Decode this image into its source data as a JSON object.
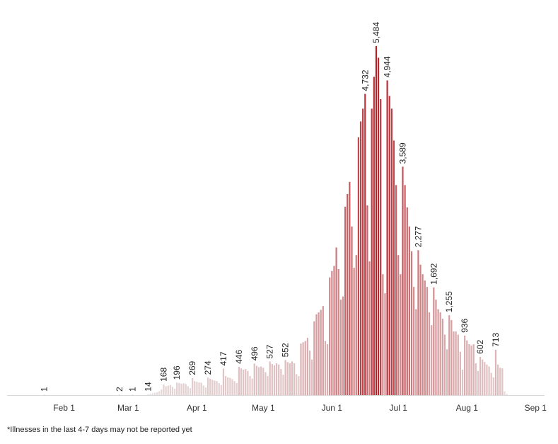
{
  "chart_data": {
    "type": "bar",
    "title": "",
    "xlabel": "",
    "ylabel": "",
    "x_range": [
      "Jan 23",
      "Aug 31"
    ],
    "ylim": [
      0,
      5700
    ],
    "x_ticks": [
      "Feb 1",
      "Mar 1",
      "Apr 1",
      "May 1",
      "Jun 1",
      "Jul 1",
      "Aug 1",
      "Sep 1"
    ],
    "bars": [
      {
        "x": "Jan 23",
        "y": 1
      },
      {
        "x": "Feb 26",
        "y": 2
      },
      {
        "x": "Mar 3",
        "y": 1
      },
      {
        "x": "Mar 10",
        "y": 14
      },
      {
        "x": "Mar 11",
        "y": 20
      },
      {
        "x": "Mar 12",
        "y": 30
      },
      {
        "x": "Mar 13",
        "y": 35
      },
      {
        "x": "Mar 14",
        "y": 45
      },
      {
        "x": "Mar 15",
        "y": 60
      },
      {
        "x": "Mar 16",
        "y": 90
      },
      {
        "x": "Mar 17",
        "y": 168
      },
      {
        "x": "Mar 18",
        "y": 140
      },
      {
        "x": "Mar 19",
        "y": 150
      },
      {
        "x": "Mar 20",
        "y": 160
      },
      {
        "x": "Mar 21",
        "y": 130
      },
      {
        "x": "Mar 22",
        "y": 100
      },
      {
        "x": "Mar 23",
        "y": 196
      },
      {
        "x": "Mar 24",
        "y": 190
      },
      {
        "x": "Mar 25",
        "y": 180
      },
      {
        "x": "Mar 26",
        "y": 185
      },
      {
        "x": "Mar 27",
        "y": 175
      },
      {
        "x": "Mar 28",
        "y": 140
      },
      {
        "x": "Mar 29",
        "y": 110
      },
      {
        "x": "Mar 30",
        "y": 269
      },
      {
        "x": "Mar 31",
        "y": 220
      },
      {
        "x": "Apr 1",
        "y": 210
      },
      {
        "x": "Apr 2",
        "y": 200
      },
      {
        "x": "Apr 3",
        "y": 195
      },
      {
        "x": "Apr 4",
        "y": 150
      },
      {
        "x": "Apr 5",
        "y": 120
      },
      {
        "x": "Apr 6",
        "y": 274
      },
      {
        "x": "Apr 7",
        "y": 260
      },
      {
        "x": "Apr 8",
        "y": 240
      },
      {
        "x": "Apr 9",
        "y": 230
      },
      {
        "x": "Apr 10",
        "y": 220
      },
      {
        "x": "Apr 11",
        "y": 190
      },
      {
        "x": "Apr 12",
        "y": 160
      },
      {
        "x": "Apr 13",
        "y": 417
      },
      {
        "x": "Apr 14",
        "y": 300
      },
      {
        "x": "Apr 15",
        "y": 280
      },
      {
        "x": "Apr 16",
        "y": 270
      },
      {
        "x": "Apr 17",
        "y": 250
      },
      {
        "x": "Apr 18",
        "y": 220
      },
      {
        "x": "Apr 19",
        "y": 190
      },
      {
        "x": "Apr 20",
        "y": 446
      },
      {
        "x": "Apr 21",
        "y": 420
      },
      {
        "x": "Apr 22",
        "y": 400
      },
      {
        "x": "Apr 23",
        "y": 410
      },
      {
        "x": "Apr 24",
        "y": 380
      },
      {
        "x": "Apr 25",
        "y": 300
      },
      {
        "x": "Apr 26",
        "y": 260
      },
      {
        "x": "Apr 27",
        "y": 496
      },
      {
        "x": "Apr 28",
        "y": 460
      },
      {
        "x": "Apr 29",
        "y": 440
      },
      {
        "x": "Apr 30",
        "y": 450
      },
      {
        "x": "May 1",
        "y": 430
      },
      {
        "x": "May 2",
        "y": 360
      },
      {
        "x": "May 3",
        "y": 300
      },
      {
        "x": "May 4",
        "y": 527
      },
      {
        "x": "May 5",
        "y": 490
      },
      {
        "x": "May 6",
        "y": 470
      },
      {
        "x": "May 7",
        "y": 500
      },
      {
        "x": "May 8",
        "y": 480
      },
      {
        "x": "May 9",
        "y": 410
      },
      {
        "x": "May 10",
        "y": 320
      },
      {
        "x": "May 11",
        "y": 552
      },
      {
        "x": "May 12",
        "y": 520
      },
      {
        "x": "May 13",
        "y": 500
      },
      {
        "x": "May 14",
        "y": 530
      },
      {
        "x": "May 15",
        "y": 500
      },
      {
        "x": "May 16",
        "y": 330
      },
      {
        "x": "May 17",
        "y": 300
      },
      {
        "x": "May 18",
        "y": 810
      },
      {
        "x": "May 19",
        "y": 830
      },
      {
        "x": "May 20",
        "y": 850
      },
      {
        "x": "May 21",
        "y": 900
      },
      {
        "x": "May 22",
        "y": 700
      },
      {
        "x": "May 23",
        "y": 560
      },
      {
        "x": "May 24",
        "y": 1160
      },
      {
        "x": "May 25",
        "y": 1270
      },
      {
        "x": "May 26",
        "y": 1300
      },
      {
        "x": "May 27",
        "y": 1340
      },
      {
        "x": "May 28",
        "y": 1400
      },
      {
        "x": "May 29",
        "y": 850
      },
      {
        "x": "May 30",
        "y": 800
      },
      {
        "x": "May 31",
        "y": 1850
      },
      {
        "x": "Jun 1",
        "y": 1950
      },
      {
        "x": "Jun 2",
        "y": 2030
      },
      {
        "x": "Jun 3",
        "y": 2320
      },
      {
        "x": "Jun 4",
        "y": 1980
      },
      {
        "x": "Jun 5",
        "y": 1500
      },
      {
        "x": "Jun 6",
        "y": 1550
      },
      {
        "x": "Jun 7",
        "y": 2960
      },
      {
        "x": "Jun 8",
        "y": 3160
      },
      {
        "x": "Jun 9",
        "y": 3350
      },
      {
        "x": "Jun 10",
        "y": 2650
      },
      {
        "x": "Jun 11",
        "y": 2000
      },
      {
        "x": "Jun 12",
        "y": 2200
      },
      {
        "x": "Jun 13",
        "y": 4050
      },
      {
        "x": "Jun 14",
        "y": 4300
      },
      {
        "x": "Jun 15",
        "y": 4500
      },
      {
        "x": "Jun 16",
        "y": 4732
      },
      {
        "x": "Jun 17",
        "y": 2980
      },
      {
        "x": "Jun 18",
        "y": 2100
      },
      {
        "x": "Jun 19",
        "y": 4500
      },
      {
        "x": "Jun 20",
        "y": 5000
      },
      {
        "x": "Jun 21",
        "y": 5484
      },
      {
        "x": "Jun 22",
        "y": 5300
      },
      {
        "x": "Jun 23",
        "y": 4650
      },
      {
        "x": "Jun 24",
        "y": 1900
      },
      {
        "x": "Jun 25",
        "y": 1600
      },
      {
        "x": "Jun 26",
        "y": 4944
      },
      {
        "x": "Jun 27",
        "y": 4700
      },
      {
        "x": "Jun 28",
        "y": 4500
      },
      {
        "x": "Jun 29",
        "y": 4000
      },
      {
        "x": "Jun 30",
        "y": 3300
      },
      {
        "x": "Jul 1",
        "y": 2200
      },
      {
        "x": "Jul 2",
        "y": 1900
      },
      {
        "x": "Jul 3",
        "y": 3589
      },
      {
        "x": "Jul 4",
        "y": 3300
      },
      {
        "x": "Jul 5",
        "y": 2950
      },
      {
        "x": "Jul 6",
        "y": 2650
      },
      {
        "x": "Jul 7",
        "y": 2260
      },
      {
        "x": "Jul 8",
        "y": 1700
      },
      {
        "x": "Jul 9",
        "y": 1350
      },
      {
        "x": "Jul 10",
        "y": 2277
      },
      {
        "x": "Jul 11",
        "y": 2050
      },
      {
        "x": "Jul 12",
        "y": 1900
      },
      {
        "x": "Jul 13",
        "y": 1800
      },
      {
        "x": "Jul 14",
        "y": 1700
      },
      {
        "x": "Jul 15",
        "y": 1300
      },
      {
        "x": "Jul 16",
        "y": 1100
      },
      {
        "x": "Jul 17",
        "y": 1692
      },
      {
        "x": "Jul 18",
        "y": 1500
      },
      {
        "x": "Jul 19",
        "y": 1350
      },
      {
        "x": "Jul 20",
        "y": 1300
      },
      {
        "x": "Jul 21",
        "y": 1200
      },
      {
        "x": "Jul 22",
        "y": 950
      },
      {
        "x": "Jul 23",
        "y": 720
      },
      {
        "x": "Jul 24",
        "y": 1255
      },
      {
        "x": "Jul 25",
        "y": 1180
      },
      {
        "x": "Jul 26",
        "y": 1000
      },
      {
        "x": "Jul 27",
        "y": 1000
      },
      {
        "x": "Jul 28",
        "y": 950
      },
      {
        "x": "Jul 29",
        "y": 680
      },
      {
        "x": "Jul 30",
        "y": 400
      },
      {
        "x": "Jul 31",
        "y": 936
      },
      {
        "x": "Aug 1",
        "y": 860
      },
      {
        "x": "Aug 2",
        "y": 800
      },
      {
        "x": "Aug 3",
        "y": 780
      },
      {
        "x": "Aug 4",
        "y": 800
      },
      {
        "x": "Aug 5",
        "y": 500
      },
      {
        "x": "Aug 6",
        "y": 380
      },
      {
        "x": "Aug 7",
        "y": 602
      },
      {
        "x": "Aug 8",
        "y": 560
      },
      {
        "x": "Aug 9",
        "y": 520
      },
      {
        "x": "Aug 10",
        "y": 480
      },
      {
        "x": "Aug 11",
        "y": 450
      },
      {
        "x": "Aug 12",
        "y": 350
      },
      {
        "x": "Aug 13",
        "y": 280
      },
      {
        "x": "Aug 14",
        "y": 713
      },
      {
        "x": "Aug 15",
        "y": 480
      },
      {
        "x": "Aug 16",
        "y": 430
      },
      {
        "x": "Aug 17",
        "y": 420
      },
      {
        "x": "Aug 18",
        "y": 60
      },
      {
        "x": "Aug 19",
        "y": 20
      }
    ],
    "labeled": [
      "Jan 23",
      "Feb 26",
      "Mar 3",
      "Mar 10",
      "Mar 17",
      "Mar 23",
      "Mar 30",
      "Apr 6",
      "Apr 13",
      "Apr 20",
      "Apr 27",
      "May 4",
      "May 11",
      "Jun 16",
      "Jun 21",
      "Jun 26",
      "Jul 3",
      "Jul 10",
      "Jul 17",
      "Jul 24",
      "Jul 31",
      "Aug 7",
      "Aug 14"
    ],
    "grid": false,
    "colors": {
      "low": "#e8e2e2",
      "high": "#b5232a",
      "axis": "#d9d9d9"
    }
  },
  "footnote": "*Illnesses in the last 4-7 days may not be reported yet"
}
